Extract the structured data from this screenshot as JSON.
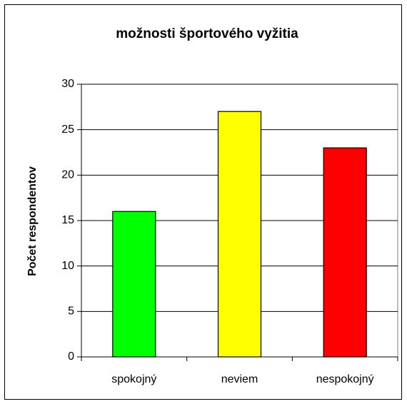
{
  "chart_data": {
    "type": "bar",
    "title": "možnosti športového vyžitia",
    "y_label": "Počet respondentov",
    "categories": [
      "spokojný",
      "neviem",
      "nespokojný"
    ],
    "values": [
      16,
      27,
      23
    ],
    "colors": [
      "#00ff00",
      "#ffff00",
      "#ff0000"
    ],
    "ylim": [
      0,
      30
    ],
    "yticks": [
      0,
      5,
      10,
      15,
      20,
      25,
      30
    ],
    "grid": true
  }
}
